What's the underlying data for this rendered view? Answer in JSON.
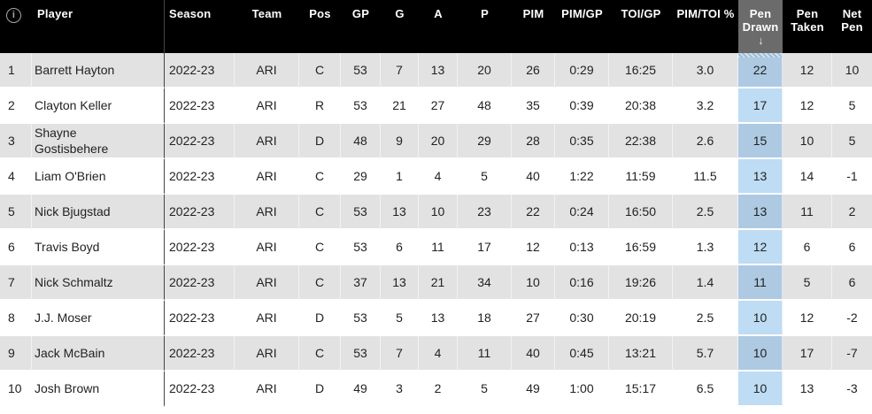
{
  "colors": {
    "header-bg": "#000000",
    "header-text": "#ffffff",
    "sorted-header-bg": "#6b6b6b",
    "stripe-row-bg": "#e2e2e2",
    "plain-row-bg": "#ffffff",
    "sorted-cell-stripe-bg": "#adcae2",
    "sorted-cell-plain-bg": "#bedcf3",
    "player-divider": "#444444",
    "cell-text": "#222222",
    "info-icon-color": "#a8a8a8"
  },
  "table": {
    "info_icon_glyph": "i",
    "columns": [
      {
        "key": "rank",
        "label": ""
      },
      {
        "key": "player",
        "label": "Player"
      },
      {
        "key": "season",
        "label": "Season"
      },
      {
        "key": "team",
        "label": "Team"
      },
      {
        "key": "pos",
        "label": "Pos"
      },
      {
        "key": "gp",
        "label": "GP"
      },
      {
        "key": "g",
        "label": "G"
      },
      {
        "key": "a",
        "label": "A"
      },
      {
        "key": "p",
        "label": "P"
      },
      {
        "key": "pim",
        "label": "PIM"
      },
      {
        "key": "pim_gp",
        "label": "PIM/GP"
      },
      {
        "key": "toi_gp",
        "label": "TOI/GP"
      },
      {
        "key": "pim_toi_pct",
        "label": "PIM/TOI %"
      },
      {
        "key": "pen_drawn",
        "label": "Pen Drawn",
        "sorted": "desc",
        "sort_arrow": "↓"
      },
      {
        "key": "pen_taken",
        "label": "Pen Taken"
      },
      {
        "key": "net_pen",
        "label": "Net Pen"
      }
    ],
    "rows": [
      {
        "rank": "1",
        "player": "Barrett Hayton",
        "season": "2022-23",
        "team": "ARI",
        "pos": "C",
        "gp": "53",
        "g": "7",
        "a": "13",
        "p": "20",
        "pim": "26",
        "pim_gp": "0:29",
        "toi_gp": "16:25",
        "pim_toi_pct": "3.0",
        "pen_drawn": "22",
        "pen_taken": "12",
        "net_pen": "10"
      },
      {
        "rank": "2",
        "player": "Clayton Keller",
        "season": "2022-23",
        "team": "ARI",
        "pos": "R",
        "gp": "53",
        "g": "21",
        "a": "27",
        "p": "48",
        "pim": "35",
        "pim_gp": "0:39",
        "toi_gp": "20:38",
        "pim_toi_pct": "3.2",
        "pen_drawn": "17",
        "pen_taken": "12",
        "net_pen": "5"
      },
      {
        "rank": "3",
        "player": "Shayne Gostisbehere",
        "season": "2022-23",
        "team": "ARI",
        "pos": "D",
        "gp": "48",
        "g": "9",
        "a": "20",
        "p": "29",
        "pim": "28",
        "pim_gp": "0:35",
        "toi_gp": "22:38",
        "pim_toi_pct": "2.6",
        "pen_drawn": "15",
        "pen_taken": "10",
        "net_pen": "5"
      },
      {
        "rank": "4",
        "player": "Liam O'Brien",
        "season": "2022-23",
        "team": "ARI",
        "pos": "C",
        "gp": "29",
        "g": "1",
        "a": "4",
        "p": "5",
        "pim": "40",
        "pim_gp": "1:22",
        "toi_gp": "11:59",
        "pim_toi_pct": "11.5",
        "pen_drawn": "13",
        "pen_taken": "14",
        "net_pen": "-1"
      },
      {
        "rank": "5",
        "player": "Nick Bjugstad",
        "season": "2022-23",
        "team": "ARI",
        "pos": "C",
        "gp": "53",
        "g": "13",
        "a": "10",
        "p": "23",
        "pim": "22",
        "pim_gp": "0:24",
        "toi_gp": "16:50",
        "pim_toi_pct": "2.5",
        "pen_drawn": "13",
        "pen_taken": "11",
        "net_pen": "2"
      },
      {
        "rank": "6",
        "player": "Travis Boyd",
        "season": "2022-23",
        "team": "ARI",
        "pos": "C",
        "gp": "53",
        "g": "6",
        "a": "11",
        "p": "17",
        "pim": "12",
        "pim_gp": "0:13",
        "toi_gp": "16:59",
        "pim_toi_pct": "1.3",
        "pen_drawn": "12",
        "pen_taken": "6",
        "net_pen": "6"
      },
      {
        "rank": "7",
        "player": "Nick Schmaltz",
        "season": "2022-23",
        "team": "ARI",
        "pos": "C",
        "gp": "37",
        "g": "13",
        "a": "21",
        "p": "34",
        "pim": "10",
        "pim_gp": "0:16",
        "toi_gp": "19:26",
        "pim_toi_pct": "1.4",
        "pen_drawn": "11",
        "pen_taken": "5",
        "net_pen": "6"
      },
      {
        "rank": "8",
        "player": "J.J. Moser",
        "season": "2022-23",
        "team": "ARI",
        "pos": "D",
        "gp": "53",
        "g": "5",
        "a": "13",
        "p": "18",
        "pim": "27",
        "pim_gp": "0:30",
        "toi_gp": "20:19",
        "pim_toi_pct": "2.5",
        "pen_drawn": "10",
        "pen_taken": "12",
        "net_pen": "-2"
      },
      {
        "rank": "9",
        "player": "Jack McBain",
        "season": "2022-23",
        "team": "ARI",
        "pos": "C",
        "gp": "53",
        "g": "7",
        "a": "4",
        "p": "11",
        "pim": "40",
        "pim_gp": "0:45",
        "toi_gp": "13:21",
        "pim_toi_pct": "5.7",
        "pen_drawn": "10",
        "pen_taken": "17",
        "net_pen": "-7"
      },
      {
        "rank": "10",
        "player": "Josh Brown",
        "season": "2022-23",
        "team": "ARI",
        "pos": "D",
        "gp": "49",
        "g": "3",
        "a": "2",
        "p": "5",
        "pim": "49",
        "pim_gp": "1:00",
        "toi_gp": "15:17",
        "pim_toi_pct": "6.5",
        "pen_drawn": "10",
        "pen_taken": "13",
        "net_pen": "-3"
      }
    ]
  }
}
